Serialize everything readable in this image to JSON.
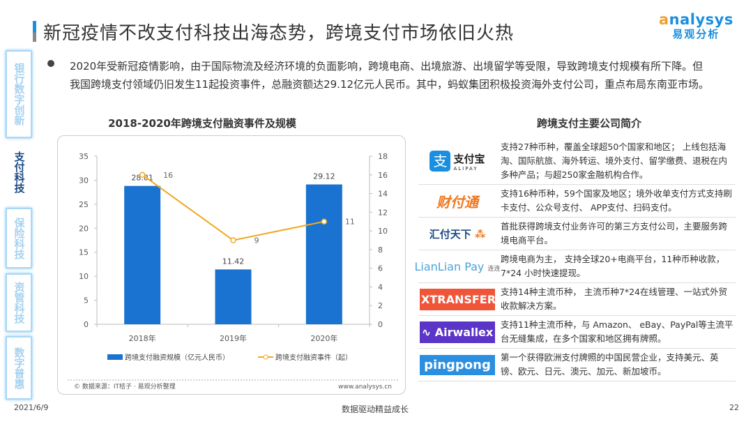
{
  "header": {
    "title": "新冠疫情不改支付科技出海态势，跨境支付市场依旧火热",
    "logo_en": "analysys",
    "logo_cn": "易观分析"
  },
  "sidebar": {
    "items": [
      {
        "label": "银行数字创新",
        "active": false
      },
      {
        "label": "支付科技",
        "active": true
      },
      {
        "label": "保险科技",
        "active": false
      },
      {
        "label": "资管科技",
        "active": false
      },
      {
        "label": "数字普惠",
        "active": false
      }
    ]
  },
  "summary": "2020年受新冠疫情影响，由于国际物流及经济环境的负面影响，跨境电商、出境旅游、出境留学等受限，导致跨境支付规模有所下降。但我国跨境支付领域仍旧发生11起投资事件，总融资额达29.12亿元人民币。其中，蚂蚁集团积极投资海外支付公司，重点布局东南亚市场。",
  "chart_data": {
    "type": "bar+line",
    "title": "2018-2020年跨境支付融资事件及规模",
    "categories": [
      "2018年",
      "2019年",
      "2020年"
    ],
    "series": [
      {
        "name": "跨境支付融资规模（亿元人民币）",
        "type": "bar",
        "axis": "left",
        "values": [
          28.81,
          11.42,
          29.12
        ],
        "color": "#1a73d0"
      },
      {
        "name": "跨境支付融资事件（起）",
        "type": "line",
        "axis": "right",
        "values": [
          16,
          9,
          11
        ],
        "color": "#f0a820"
      }
    ],
    "left_ylim": [
      0,
      35
    ],
    "left_ticks": [
      0,
      5,
      10,
      15,
      20,
      25,
      30,
      35
    ],
    "right_ylim": [
      0,
      18
    ],
    "right_ticks": [
      0,
      2,
      4,
      6,
      8,
      10,
      12,
      14,
      16,
      18
    ],
    "grid": false,
    "legend": "bottom",
    "source": "© 数据来源：IT桔子 · 易观分析整理",
    "site": "www.analysys.cn"
  },
  "companies": {
    "title": "跨境支付主要公司简介",
    "items": [
      {
        "logo": "支付宝",
        "logo_sub": "ALIPAY",
        "desc": "支持27种币种，覆盖全球超50个国家和地区； 上线包括海淘、国际航旅、海外转运、境外支付、留学缴费、退税在内多种产品；与超250家金融机构合作。"
      },
      {
        "logo": "财付通",
        "desc": "支持16种币种，59个国家及地区；境外收单支付方式支持刷卡支付、公众号支付、 APP支付、扫码支付。"
      },
      {
        "logo": "汇付天下",
        "desc": "首批获得跨境支付业务许可的第三方支付公司，主要服务跨境电商平台。"
      },
      {
        "logo": "LianLian Pay",
        "logo_sub": "连连",
        "desc": "跨境电商为主， 支持全球20+电商平台，11种币种收款，7*24 小时快速提现。"
      },
      {
        "logo": "XTRANSFER",
        "desc": "支持14种主流币种， 主流币种7*24在线管理、一站式外贸收款解决方案。"
      },
      {
        "logo": "Airwallex",
        "desc": "支持11种主流币种，与 Amazon、 eBay、PayPal等主流平台无缝集成，在多个国家和地区拥有牌照。"
      },
      {
        "logo": "pingpong",
        "desc": "第一个获得欧洲支付牌照的中国民营企业，支持美元、英镑、欧元、日元、澳元、加元、新加坡币。"
      }
    ]
  },
  "footer": {
    "date": "2021/6/9",
    "slogan": "数据驱动精益成长",
    "page": "22"
  }
}
